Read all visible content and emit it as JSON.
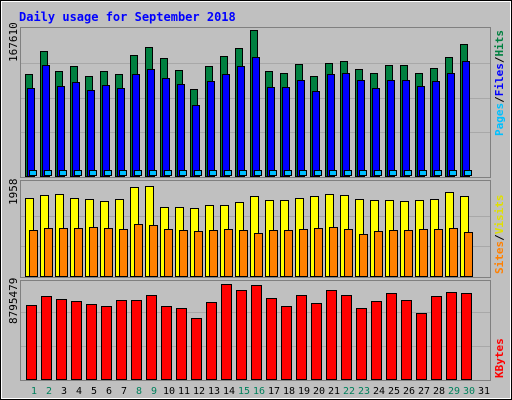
{
  "title": "Daily usage for September 2018",
  "colors": {
    "background": "#c0c0c0",
    "title": "#0000ff",
    "hits": "#008040",
    "files": "#0000ff",
    "pages": "#00c0ff",
    "visits": "#ffff00",
    "sites": "#ff8000",
    "kbytes": "#ff0000",
    "day_label": "#000000",
    "weekend_label": "#00805c"
  },
  "chart_data": [
    {
      "type": "bar",
      "panel": "top",
      "y_max_label": "167610",
      "ylim": [
        0,
        167610
      ],
      "legend": {
        "pages": "Pages",
        "files": "Files",
        "hits": "Hits",
        "sep": "/"
      },
      "categories": [
        "1",
        "2",
        "3",
        "4",
        "5",
        "6",
        "7",
        "8",
        "9",
        "10",
        "11",
        "12",
        "13",
        "14",
        "15",
        "16",
        "17",
        "18",
        "19",
        "20",
        "21",
        "22",
        "23",
        "24",
        "25",
        "26",
        "27",
        "28",
        "29",
        "30",
        "31"
      ],
      "series": [
        {
          "name": "Hits",
          "values": [
            116000,
            142000,
            120000,
            125000,
            114000,
            120000,
            116000,
            138000,
            147000,
            134000,
            121000,
            99000,
            125000,
            137000,
            146000,
            166000,
            120000,
            117000,
            128000,
            114000,
            129000,
            131000,
            122000,
            117000,
            126000,
            126000,
            118000,
            123000,
            136000,
            151000,
            0
          ]
        },
        {
          "name": "Files",
          "values": [
            100000,
            126000,
            103000,
            107000,
            98000,
            104000,
            100000,
            116000,
            122000,
            112000,
            105000,
            81000,
            108000,
            116000,
            125000,
            136000,
            101000,
            101000,
            109000,
            97000,
            116000,
            117000,
            110000,
            100000,
            110000,
            109000,
            103000,
            108000,
            117000,
            131000,
            0
          ]
        },
        {
          "name": "Pages",
          "values": [
            4200,
            4500,
            4800,
            4300,
            4000,
            4100,
            4000,
            4600,
            4600,
            4300,
            4100,
            3900,
            4400,
            4200,
            4600,
            4900,
            4400,
            4300,
            4600,
            4000,
            4700,
            4600,
            4200,
            4000,
            4400,
            4300,
            4000,
            4200,
            4600,
            4800,
            0
          ]
        }
      ]
    },
    {
      "type": "bar",
      "panel": "middle",
      "y_max_label": "1958",
      "ylim": [
        0,
        1958
      ],
      "legend": {
        "sites": "Sites",
        "visits": "Visits",
        "sep": "/"
      },
      "categories": [
        "1",
        "2",
        "3",
        "4",
        "5",
        "6",
        "7",
        "8",
        "9",
        "10",
        "11",
        "12",
        "13",
        "14",
        "15",
        "16",
        "17",
        "18",
        "19",
        "20",
        "21",
        "22",
        "23",
        "24",
        "25",
        "26",
        "27",
        "28",
        "29",
        "30",
        "31"
      ],
      "series": [
        {
          "name": "Visits",
          "values": [
            1635,
            1681,
            1703,
            1635,
            1613,
            1567,
            1613,
            1849,
            1870,
            1442,
            1442,
            1420,
            1487,
            1487,
            1538,
            1657,
            1590,
            1590,
            1635,
            1657,
            1703,
            1681,
            1613,
            1590,
            1590,
            1567,
            1590,
            1613,
            1742,
            1657,
            0
          ]
        },
        {
          "name": "Sites",
          "values": [
            955,
            1000,
            1000,
            1000,
            1022,
            1000,
            977,
            1086,
            1055,
            977,
            955,
            932,
            955,
            977,
            955,
            887,
            955,
            955,
            977,
            1000,
            1022,
            977,
            865,
            932,
            955,
            955,
            977,
            977,
            1000,
            910,
            0
          ]
        }
      ]
    },
    {
      "type": "bar",
      "panel": "bottom",
      "y_max_label": "8795479",
      "ylim": [
        0,
        8795479
      ],
      "legend": {
        "kbytes": "KBytes"
      },
      "categories": [
        "1",
        "2",
        "3",
        "4",
        "5",
        "6",
        "7",
        "8",
        "9",
        "10",
        "11",
        "12",
        "13",
        "14",
        "15",
        "16",
        "17",
        "18",
        "19",
        "20",
        "21",
        "22",
        "23",
        "24",
        "25",
        "26",
        "27",
        "28",
        "29",
        "30",
        "31"
      ],
      "series": [
        {
          "name": "KBytes",
          "values": [
            6720000,
            7540000,
            7220000,
            7030000,
            6780000,
            6640000,
            7140000,
            7140000,
            7610000,
            6620000,
            6440000,
            5550000,
            6950000,
            8630000,
            8050000,
            8510000,
            7350000,
            6650000,
            7600000,
            6870000,
            8080000,
            7620000,
            6480000,
            7100000,
            7830000,
            7140000,
            6000000,
            7540000,
            7910000,
            7760000,
            0
          ]
        }
      ]
    }
  ],
  "x_axis": {
    "labels": [
      "1",
      "2",
      "3",
      "4",
      "5",
      "6",
      "7",
      "8",
      "9",
      "10",
      "11",
      "12",
      "13",
      "14",
      "15",
      "16",
      "17",
      "18",
      "19",
      "20",
      "21",
      "22",
      "23",
      "24",
      "25",
      "26",
      "27",
      "28",
      "29",
      "30",
      "31"
    ],
    "weekend": [
      true,
      true,
      false,
      false,
      false,
      false,
      false,
      true,
      true,
      false,
      false,
      false,
      false,
      false,
      true,
      true,
      false,
      false,
      false,
      false,
      false,
      true,
      true,
      false,
      false,
      false,
      false,
      false,
      true,
      true,
      false
    ]
  }
}
